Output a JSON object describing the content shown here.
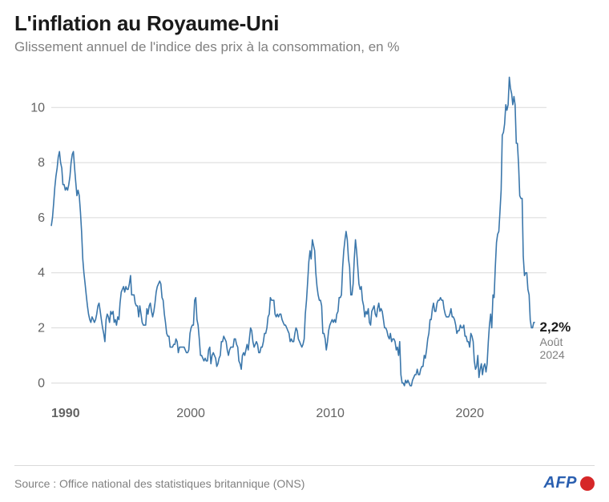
{
  "title": "L'inflation au Royaume-Uni",
  "subtitle": "Glissement annuel de l'indice des prix à la consommation, en %",
  "source": "Source : Office national des statistiques britannique (ONS)",
  "logo": {
    "text": "AFP",
    "text_color": "#2a5fb0",
    "dot_color": "#d62728"
  },
  "chart": {
    "type": "line",
    "x_start": 1990,
    "x_end": 2024.67,
    "xlim": [
      1990,
      2025.5
    ],
    "ylim": [
      -0.6,
      11.2
    ],
    "xticks": [
      1990,
      2000,
      2010,
      2020
    ],
    "yticks": [
      0,
      2,
      4,
      6,
      8,
      10
    ],
    "xtick_labels": [
      "1990",
      "2000",
      "2010",
      "2020"
    ],
    "ytick_labels": [
      "0",
      "2",
      "4",
      "6",
      "8",
      "10"
    ],
    "line_color": "#3b77ab",
    "grid_color": "#d9d9d9",
    "background_color": "#ffffff",
    "axis_label_color": "#636363",
    "axis_label_fontsize": 16,
    "callout": {
      "value": "2,2%",
      "label_line1": "Août",
      "label_line2": "2024"
    },
    "series": [
      5.7,
      6.0,
      6.5,
      7.1,
      7.5,
      7.8,
      8.2,
      8.4,
      8.0,
      7.8,
      7.2,
      7.2,
      7.0,
      7.1,
      7.0,
      7.2,
      7.5,
      8.0,
      8.3,
      8.4,
      7.8,
      7.3,
      6.8,
      7.0,
      6.8,
      6.2,
      5.5,
      4.5,
      4.0,
      3.6,
      3.2,
      2.8,
      2.5,
      2.3,
      2.2,
      2.4,
      2.3,
      2.2,
      2.3,
      2.5,
      2.8,
      2.9,
      2.6,
      2.3,
      2.0,
      1.8,
      1.5,
      2.3,
      2.5,
      2.4,
      2.2,
      2.6,
      2.5,
      2.6,
      2.2,
      2.3,
      2.1,
      2.4,
      2.3,
      2.9,
      3.3,
      3.4,
      3.5,
      3.3,
      3.5,
      3.4,
      3.4,
      3.6,
      3.9,
      3.2,
      3.2,
      3.2,
      2.9,
      2.8,
      2.8,
      2.4,
      2.8,
      2.5,
      2.2,
      2.1,
      2.1,
      2.1,
      2.7,
      2.5,
      2.8,
      2.9,
      2.6,
      2.4,
      2.6,
      2.9,
      3.3,
      3.5,
      3.6,
      3.7,
      3.6,
      3.1,
      3.0,
      2.5,
      2.2,
      1.8,
      1.7,
      1.7,
      1.3,
      1.3,
      1.3,
      1.4,
      1.4,
      1.6,
      1.5,
      1.1,
      1.3,
      1.3,
      1.3,
      1.3,
      1.3,
      1.2,
      1.1,
      1.1,
      1.2,
      1.8,
      2.0,
      2.1,
      2.1,
      3.0,
      3.1,
      2.3,
      2.1,
      1.6,
      1.0,
      1.0,
      0.9,
      0.8,
      0.9,
      0.8,
      0.8,
      1.2,
      1.3,
      0.7,
      1.0,
      1.1,
      1.0,
      0.9,
      0.6,
      0.7,
      0.9,
      1.0,
      1.5,
      1.5,
      1.7,
      1.6,
      1.5,
      1.2,
      1.0,
      1.2,
      1.3,
      1.3,
      1.3,
      1.6,
      1.6,
      1.4,
      1.3,
      0.8,
      0.7,
      0.5,
      1.0,
      1.1,
      1.0,
      1.2,
      1.4,
      1.2,
      1.6,
      2.0,
      1.9,
      1.5,
      1.3,
      1.4,
      1.5,
      1.4,
      1.1,
      1.1,
      1.3,
      1.3,
      1.5,
      1.8,
      1.8,
      2.0,
      2.4,
      2.5,
      3.1,
      3.0,
      3.0,
      3.0,
      2.5,
      2.4,
      2.5,
      2.4,
      2.5,
      2.5,
      2.3,
      2.2,
      2.1,
      2.1,
      2.0,
      1.9,
      1.8,
      1.5,
      1.6,
      1.5,
      1.5,
      1.8,
      2.0,
      1.9,
      1.6,
      1.5,
      1.4,
      1.3,
      1.4,
      1.6,
      2.5,
      3.0,
      3.7,
      4.4,
      4.8,
      4.5,
      5.2,
      5.0,
      4.8,
      4.0,
      3.5,
      3.2,
      3.0,
      3.0,
      2.8,
      1.8,
      1.8,
      1.6,
      1.2,
      1.5,
      1.9,
      2.1,
      2.2,
      2.3,
      2.2,
      2.3,
      2.2,
      2.5,
      2.6,
      3.1,
      3.1,
      3.2,
      4.2,
      4.8,
      5.2,
      5.5,
      5.2,
      4.5,
      4.2,
      3.2,
      3.2,
      3.6,
      4.5,
      5.2,
      4.8,
      4.2,
      3.6,
      3.4,
      3.5,
      3.0,
      2.8,
      2.4,
      2.6,
      2.5,
      2.7,
      2.2,
      2.1,
      2.6,
      2.7,
      2.8,
      2.5,
      2.4,
      2.7,
      2.9,
      2.6,
      2.7,
      2.6,
      2.3,
      2.0,
      2.0,
      1.9,
      1.7,
      1.6,
      1.8,
      1.5,
      1.6,
      1.6,
      1.5,
      1.2,
      1.3,
      1.0,
      1.5,
      0.3,
      0.0,
      0.0,
      -0.1,
      0.1,
      0.0,
      0.1,
      0.0,
      -0.1,
      -0.1,
      0.1,
      0.2,
      0.3,
      0.3,
      0.5,
      0.3,
      0.3,
      0.5,
      0.6,
      0.6,
      1.0,
      0.9,
      1.2,
      1.6,
      1.8,
      2.3,
      2.3,
      2.7,
      2.9,
      2.6,
      2.6,
      2.9,
      3.0,
      3.0,
      3.1,
      3.0,
      3.0,
      2.7,
      2.5,
      2.4,
      2.4,
      2.4,
      2.5,
      2.7,
      2.4,
      2.4,
      2.3,
      2.1,
      1.8,
      1.9,
      1.9,
      2.1,
      2.0,
      2.0,
      2.1,
      1.7,
      1.7,
      1.5,
      1.5,
      1.3,
      1.8,
      1.7,
      1.5,
      0.8,
      0.5,
      0.6,
      1.0,
      0.2,
      0.5,
      0.7,
      0.3,
      0.6,
      0.7,
      0.4,
      0.7,
      1.5,
      2.1,
      2.5,
      2.0,
      3.2,
      3.1,
      4.2,
      5.1,
      5.4,
      5.5,
      6.2,
      7.0,
      9.0,
      9.1,
      9.4,
      10.1,
      9.9,
      10.1,
      11.1,
      10.7,
      10.5,
      10.1,
      10.4,
      10.1,
      8.7,
      8.7,
      7.9,
      6.8,
      6.7,
      6.7,
      4.6,
      3.9,
      4.0,
      4.0,
      3.4,
      3.2,
      2.3,
      2.0,
      2.0,
      2.2,
      2.2
    ]
  }
}
